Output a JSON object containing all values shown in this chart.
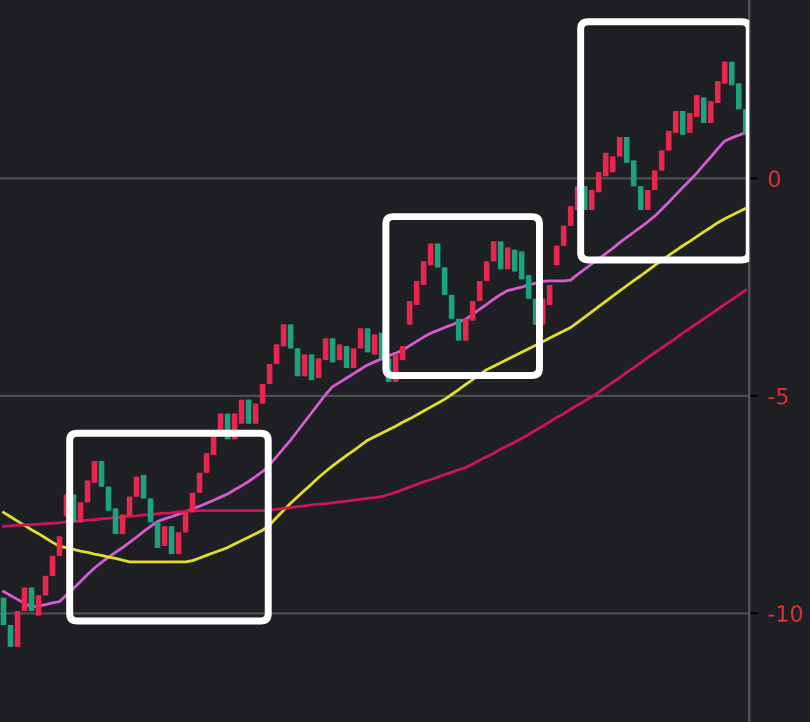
{
  "chart_data": {
    "type": "candlestick",
    "categories": [
      null,
      null,
      null,
      null,
      null,
      null,
      null,
      null,
      null,
      null,
      null,
      null,
      null,
      null,
      null,
      null,
      null,
      null,
      null,
      null,
      null,
      null,
      null,
      null,
      null,
      null,
      null,
      null,
      null,
      null,
      null,
      null,
      null,
      null,
      null,
      null,
      null,
      null,
      null,
      null,
      null,
      null,
      null,
      null,
      null,
      null,
      null,
      null,
      null,
      null,
      null,
      null,
      null,
      null,
      null,
      null,
      null,
      null,
      null,
      null,
      null,
      null,
      null,
      null,
      null,
      null,
      null,
      null,
      null,
      null,
      null,
      null,
      null,
      null,
      null,
      null,
      null,
      null,
      null,
      null,
      null,
      null,
      null,
      null,
      null,
      null,
      null,
      null,
      null,
      null,
      null,
      null,
      null,
      null,
      null,
      null,
      null,
      null,
      null,
      null,
      null,
      null,
      null,
      null,
      null,
      null,
      null
    ],
    "ohlc": [
      [
        -9.64,
        -9.64,
        -10.27,
        -10.27
      ],
      [
        -10.27,
        -10.27,
        -10.77,
        -10.77
      ],
      [
        -10.77,
        -9.95,
        -10.77,
        -9.95
      ],
      [
        -9.95,
        -9.41,
        -9.95,
        -9.41
      ],
      [
        -9.41,
        -9.41,
        -9.95,
        -9.95
      ],
      [
        -10.05,
        -9.59,
        -10.05,
        -9.59
      ],
      [
        -9.59,
        -9.14,
        -9.59,
        -9.14
      ],
      [
        -9.14,
        -8.68,
        -9.14,
        -8.68
      ],
      [
        -8.68,
        -8.23,
        -8.68,
        -8.23
      ],
      [
        -7.77,
        -7.27,
        -7.77,
        -7.27
      ],
      [
        -7.27,
        -7.27,
        -7.91,
        -7.91
      ],
      [
        -7.91,
        -7.45,
        -7.91,
        -7.45
      ],
      [
        -7.45,
        -6.95,
        -7.45,
        -6.95
      ],
      [
        -7.0,
        -6.5,
        -7.0,
        -6.5
      ],
      [
        -6.5,
        -6.5,
        -7.09,
        -7.09
      ],
      [
        -7.09,
        -7.09,
        -7.64,
        -7.64
      ],
      [
        -7.59,
        -7.59,
        -8.18,
        -8.18
      ],
      [
        -8.18,
        -7.73,
        -8.18,
        -7.73
      ],
      [
        -7.77,
        -7.32,
        -7.77,
        -7.32
      ],
      [
        -7.32,
        -6.86,
        -7.32,
        -6.86
      ],
      [
        -6.82,
        -6.82,
        -7.36,
        -7.36
      ],
      [
        -7.36,
        -7.36,
        -7.91,
        -7.91
      ],
      [
        -7.91,
        -7.91,
        -8.5,
        -8.5
      ],
      [
        -8.45,
        -8.0,
        -8.45,
        -8.0
      ],
      [
        -8.0,
        -8.0,
        -8.64,
        -8.64
      ],
      [
        -8.64,
        -8.14,
        -8.64,
        -8.14
      ],
      [
        -8.14,
        -7.68,
        -8.14,
        -7.68
      ],
      [
        -7.68,
        -7.23,
        -7.68,
        -7.23
      ],
      [
        -7.23,
        -6.77,
        -7.23,
        -6.77
      ],
      [
        -6.77,
        -6.32,
        -6.77,
        -6.32
      ],
      [
        -6.36,
        -5.86,
        -6.36,
        -5.86
      ],
      [
        -5.91,
        -5.41,
        -5.91,
        -5.41
      ],
      [
        -5.41,
        -5.41,
        -6.0,
        -6.0
      ],
      [
        -6.0,
        -5.41,
        -6.0,
        -5.41
      ],
      [
        -5.64,
        -5.09,
        -5.64,
        -5.09
      ],
      [
        -5.09,
        -5.09,
        -5.64,
        -5.64
      ],
      [
        -5.64,
        -5.18,
        -5.64,
        -5.18
      ],
      [
        -5.18,
        -4.73,
        -5.18,
        -4.73
      ],
      [
        -4.73,
        -4.27,
        -4.73,
        -4.27
      ],
      [
        -4.27,
        -3.82,
        -4.27,
        -3.82
      ],
      [
        -3.86,
        -3.36,
        -3.86,
        -3.36
      ],
      [
        -3.36,
        -3.36,
        -3.91,
        -3.91
      ],
      [
        -3.91,
        -3.91,
        -4.55,
        -4.55
      ],
      [
        -4.55,
        -4.05,
        -4.55,
        -4.05
      ],
      [
        -4.05,
        -4.05,
        -4.64,
        -4.64
      ],
      [
        -4.59,
        -4.14,
        -4.59,
        -4.14
      ],
      [
        -4.18,
        -3.68,
        -4.18,
        -3.68
      ],
      [
        -3.68,
        -3.68,
        -4.23,
        -4.23
      ],
      [
        -4.18,
        -3.82,
        -4.18,
        -3.82
      ],
      [
        -3.86,
        -3.86,
        -4.36,
        -4.36
      ],
      [
        -4.36,
        -3.91,
        -4.36,
        -3.91
      ],
      [
        -3.91,
        -3.45,
        -3.91,
        -3.45
      ],
      [
        -3.45,
        -3.45,
        -4.0,
        -4.0
      ],
      [
        -4.05,
        -3.59,
        -4.05,
        -3.59
      ],
      [
        -3.55,
        -3.55,
        -4.14,
        -4.14
      ],
      [
        -4.14,
        -4.14,
        -4.68,
        -4.68
      ],
      [
        -4.68,
        -4.05,
        -4.68,
        -4.05
      ],
      [
        -4.18,
        -3.86,
        -4.18,
        -3.86
      ],
      [
        -3.36,
        -2.82,
        -3.36,
        -2.82
      ],
      [
        -2.91,
        -2.36,
        -2.91,
        -2.36
      ],
      [
        -2.45,
        -1.91,
        -2.45,
        -1.91
      ],
      [
        -2.0,
        -1.5,
        -2.0,
        -1.5
      ],
      [
        -1.5,
        -1.5,
        -2.05,
        -2.05
      ],
      [
        -2.05,
        -2.05,
        -2.68,
        -2.68
      ],
      [
        -2.68,
        -2.68,
        -3.23,
        -3.23
      ],
      [
        -3.23,
        -3.23,
        -3.73,
        -3.73
      ],
      [
        -3.73,
        -3.23,
        -3.73,
        -3.23
      ],
      [
        -3.27,
        -2.82,
        -3.27,
        -2.82
      ],
      [
        -2.82,
        -2.36,
        -2.82,
        -2.36
      ],
      [
        -2.36,
        -1.91,
        -2.36,
        -1.91
      ],
      [
        -1.91,
        -1.45,
        -1.91,
        -1.45
      ],
      [
        -1.45,
        -1.45,
        -2.09,
        -2.09
      ],
      [
        -2.09,
        -1.59,
        -2.09,
        -1.59
      ],
      [
        -1.64,
        -1.64,
        -2.14,
        -2.14
      ],
      [
        -1.68,
        -1.68,
        -2.32,
        -2.32
      ],
      [
        -2.23,
        -2.23,
        -2.77,
        -2.77
      ],
      [
        -2.77,
        -2.77,
        -3.36,
        -3.36
      ],
      [
        -3.36,
        -2.77,
        -3.36,
        -2.77
      ],
      [
        -2.91,
        -2.45,
        -2.91,
        -2.45
      ],
      [
        -2.0,
        -1.55,
        -2.0,
        -1.55
      ],
      [
        -1.55,
        -1.09,
        -1.55,
        -1.09
      ],
      [
        -1.09,
        -0.64,
        -1.09,
        -0.64
      ],
      [
        -0.73,
        -0.18,
        -0.73,
        -0.18
      ],
      [
        -0.18,
        -0.18,
        -0.73,
        -0.73
      ],
      [
        -0.73,
        -0.27,
        -0.73,
        -0.27
      ],
      [
        -0.32,
        0.14,
        -0.32,
        0.14
      ],
      [
        0.05,
        0.59,
        0.05,
        0.59
      ],
      [
        0.14,
        0.5,
        0.14,
        0.5
      ],
      [
        0.5,
        0.95,
        0.5,
        0.95
      ],
      [
        0.95,
        0.95,
        0.36,
        0.36
      ],
      [
        0.41,
        0.41,
        -0.18,
        -0.18
      ],
      [
        -0.18,
        -0.18,
        -0.73,
        -0.73
      ],
      [
        -0.73,
        -0.27,
        -0.73,
        -0.27
      ],
      [
        -0.27,
        0.18,
        -0.27,
        0.18
      ],
      [
        0.18,
        0.64,
        0.18,
        0.64
      ],
      [
        0.64,
        1.09,
        0.64,
        1.09
      ],
      [
        1.05,
        1.55,
        1.05,
        1.55
      ],
      [
        1.55,
        1.55,
        1.0,
        1.0
      ],
      [
        1.05,
        1.5,
        1.05,
        1.5
      ],
      [
        1.41,
        1.91,
        1.41,
        1.91
      ],
      [
        1.86,
        1.86,
        1.27,
        1.27
      ],
      [
        1.27,
        1.77,
        1.27,
        1.77
      ],
      [
        1.73,
        2.23,
        1.73,
        2.23
      ],
      [
        2.18,
        2.68,
        2.18,
        2.68
      ],
      [
        2.68,
        2.68,
        2.14,
        2.14
      ],
      [
        2.18,
        2.18,
        1.59,
        1.59
      ],
      [
        1.59,
        1.59,
        1.0,
        1.0
      ]
    ],
    "colors": [
      "#1ea27d",
      "#1ea27d",
      "#e8264e",
      "#e8264e",
      "#1ea27d",
      "#e8264e",
      "#e8264e",
      "#e8264e",
      "#e8264e",
      "#e8264e",
      "#1ea27d",
      "#e8264e",
      "#e8264e",
      "#e8264e",
      "#1ea27d",
      "#1ea27d",
      "#1ea27d",
      "#e8264e",
      "#e8264e",
      "#e8264e",
      "#1ea27d",
      "#1ea27d",
      "#1ea27d",
      "#e8264e",
      "#1ea27d",
      "#e8264e",
      "#e8264e",
      "#e8264e",
      "#e8264e",
      "#e8264e",
      "#e8264e",
      "#e8264e",
      "#1ea27d",
      "#e8264e",
      "#e8264e",
      "#1ea27d",
      "#e8264e",
      "#e8264e",
      "#e8264e",
      "#e8264e",
      "#e8264e",
      "#1ea27d",
      "#1ea27d",
      "#e8264e",
      "#1ea27d",
      "#e8264e",
      "#e8264e",
      "#1ea27d",
      "#e8264e",
      "#1ea27d",
      "#e8264e",
      "#e8264e",
      "#1ea27d",
      "#e8264e",
      "#1ea27d",
      "#1ea27d",
      "#e8264e",
      "#e8264e",
      "#e8264e",
      "#e8264e",
      "#e8264e",
      "#e8264e",
      "#1ea27d",
      "#1ea27d",
      "#1ea27d",
      "#1ea27d",
      "#e8264e",
      "#e8264e",
      "#e8264e",
      "#e8264e",
      "#e8264e",
      "#1ea27d",
      "#e8264e",
      "#1ea27d",
      "#1ea27d",
      "#1ea27d",
      "#1ea27d",
      "#e8264e",
      "#e8264e",
      "#e8264e",
      "#e8264e",
      "#e8264e",
      "#e8264e",
      "#1ea27d",
      "#e8264e",
      "#e8264e",
      "#e8264e",
      "#e8264e",
      "#e8264e",
      "#1ea27d",
      "#1ea27d",
      "#1ea27d",
      "#e8264e",
      "#e8264e",
      "#e8264e",
      "#e8264e",
      "#e8264e",
      "#1ea27d",
      "#e8264e",
      "#e8264e",
      "#1ea27d",
      "#e8264e",
      "#e8264e",
      "#e8264e",
      "#1ea27d",
      "#1ea27d",
      "#1ea27d"
    ],
    "series": [
      {
        "type": "line",
        "color": "#d65cd6",
        "values": [
          -9.5,
          -9.59,
          -9.68,
          -9.77,
          -9.86,
          -9.83,
          -9.8,
          -9.76,
          -9.73,
          -9.58,
          -9.43,
          -9.27,
          -9.11,
          -8.96,
          -8.83,
          -8.71,
          -8.6,
          -8.49,
          -8.37,
          -8.25,
          -8.12,
          -8.0,
          -7.89,
          -7.83,
          -7.78,
          -7.72,
          -7.66,
          -7.6,
          -7.54,
          -7.47,
          -7.4,
          -7.33,
          -7.26,
          -7.16,
          -7.07,
          -6.97,
          -6.86,
          -6.74,
          -6.59,
          -6.4,
          -6.21,
          -6.02,
          -5.81,
          -5.6,
          -5.39,
          -5.18,
          -4.97,
          -4.79,
          -4.69,
          -4.59,
          -4.49,
          -4.39,
          -4.29,
          -4.22,
          -4.15,
          -4.08,
          -4.02,
          -3.95,
          -3.85,
          -3.75,
          -3.65,
          -3.56,
          -3.5,
          -3.43,
          -3.37,
          -3.3,
          -3.24,
          -3.13,
          -3.01,
          -2.9,
          -2.78,
          -2.67,
          -2.58,
          -2.54,
          -2.5,
          -2.45,
          -2.41,
          -2.37,
          -2.36,
          -2.36,
          -2.36,
          -2.34,
          -2.21,
          -2.09,
          -1.97,
          -1.85,
          -1.73,
          -1.61,
          -1.48,
          -1.36,
          -1.24,
          -1.12,
          -1.0,
          -0.87,
          -0.71,
          -0.55,
          -0.38,
          -0.21,
          -0.05,
          0.12,
          0.31,
          0.49,
          0.68,
          0.86,
          0.93,
          0.99,
          1.06
        ]
      },
      {
        "type": "line",
        "color": "#e3de2c",
        "values": [
          -7.68,
          -7.78,
          -7.88,
          -7.98,
          -8.08,
          -8.17,
          -8.27,
          -8.37,
          -8.46,
          -8.49,
          -8.53,
          -8.57,
          -8.6,
          -8.64,
          -8.67,
          -8.71,
          -8.74,
          -8.78,
          -8.82,
          -8.82,
          -8.82,
          -8.82,
          -8.82,
          -8.82,
          -8.82,
          -8.82,
          -8.82,
          -8.79,
          -8.73,
          -8.67,
          -8.61,
          -8.55,
          -8.49,
          -8.41,
          -8.33,
          -8.25,
          -8.17,
          -8.09,
          -7.97,
          -7.8,
          -7.63,
          -7.47,
          -7.32,
          -7.17,
          -7.03,
          -6.88,
          -6.74,
          -6.61,
          -6.49,
          -6.37,
          -6.26,
          -6.14,
          -6.02,
          -5.94,
          -5.86,
          -5.78,
          -5.7,
          -5.61,
          -5.53,
          -5.44,
          -5.35,
          -5.26,
          -5.17,
          -5.08,
          -4.97,
          -4.86,
          -4.74,
          -4.63,
          -4.51,
          -4.4,
          -4.32,
          -4.24,
          -4.16,
          -4.08,
          -4.0,
          -3.92,
          -3.84,
          -3.76,
          -3.67,
          -3.59,
          -3.51,
          -3.43,
          -3.31,
          -3.19,
          -3.07,
          -2.95,
          -2.83,
          -2.71,
          -2.59,
          -2.47,
          -2.35,
          -2.24,
          -2.12,
          -2.0,
          -1.89,
          -1.77,
          -1.66,
          -1.55,
          -1.45,
          -1.34,
          -1.23,
          -1.13,
          -1.02,
          -0.93,
          -0.85,
          -0.77,
          -0.69
        ]
      },
      {
        "type": "line",
        "color": "#cf1559",
        "values": [
          -8.0,
          -7.99,
          -7.98,
          -7.97,
          -7.96,
          -7.95,
          -7.94,
          -7.93,
          -7.92,
          -7.9,
          -7.89,
          -7.87,
          -7.86,
          -7.85,
          -7.83,
          -7.82,
          -7.8,
          -7.79,
          -7.77,
          -7.76,
          -7.74,
          -7.73,
          -7.71,
          -7.7,
          -7.69,
          -7.67,
          -7.66,
          -7.64,
          -7.64,
          -7.64,
          -7.64,
          -7.64,
          -7.64,
          -7.64,
          -7.64,
          -7.64,
          -7.64,
          -7.64,
          -7.63,
          -7.61,
          -7.59,
          -7.57,
          -7.55,
          -7.53,
          -7.51,
          -7.49,
          -7.48,
          -7.46,
          -7.44,
          -7.42,
          -7.4,
          -7.38,
          -7.36,
          -7.34,
          -7.32,
          -7.27,
          -7.22,
          -7.16,
          -7.1,
          -7.04,
          -6.98,
          -6.93,
          -6.87,
          -6.81,
          -6.76,
          -6.7,
          -6.65,
          -6.57,
          -6.48,
          -6.4,
          -6.32,
          -6.23,
          -6.15,
          -6.07,
          -5.98,
          -5.89,
          -5.79,
          -5.7,
          -5.6,
          -5.5,
          -5.41,
          -5.31,
          -5.21,
          -5.12,
          -5.02,
          -4.92,
          -4.8,
          -4.69,
          -4.58,
          -4.46,
          -4.35,
          -4.24,
          -4.12,
          -4.01,
          -3.9,
          -3.79,
          -3.68,
          -3.56,
          -3.45,
          -3.34,
          -3.23,
          -3.12,
          -3.01,
          -2.9,
          -2.79,
          -2.68,
          -2.57
        ]
      }
    ],
    "ylim": [
      -12.5,
      4.1
    ],
    "yticks": [
      0,
      -5,
      -10
    ],
    "grid": "y",
    "tick_labels": "y"
  }
}
